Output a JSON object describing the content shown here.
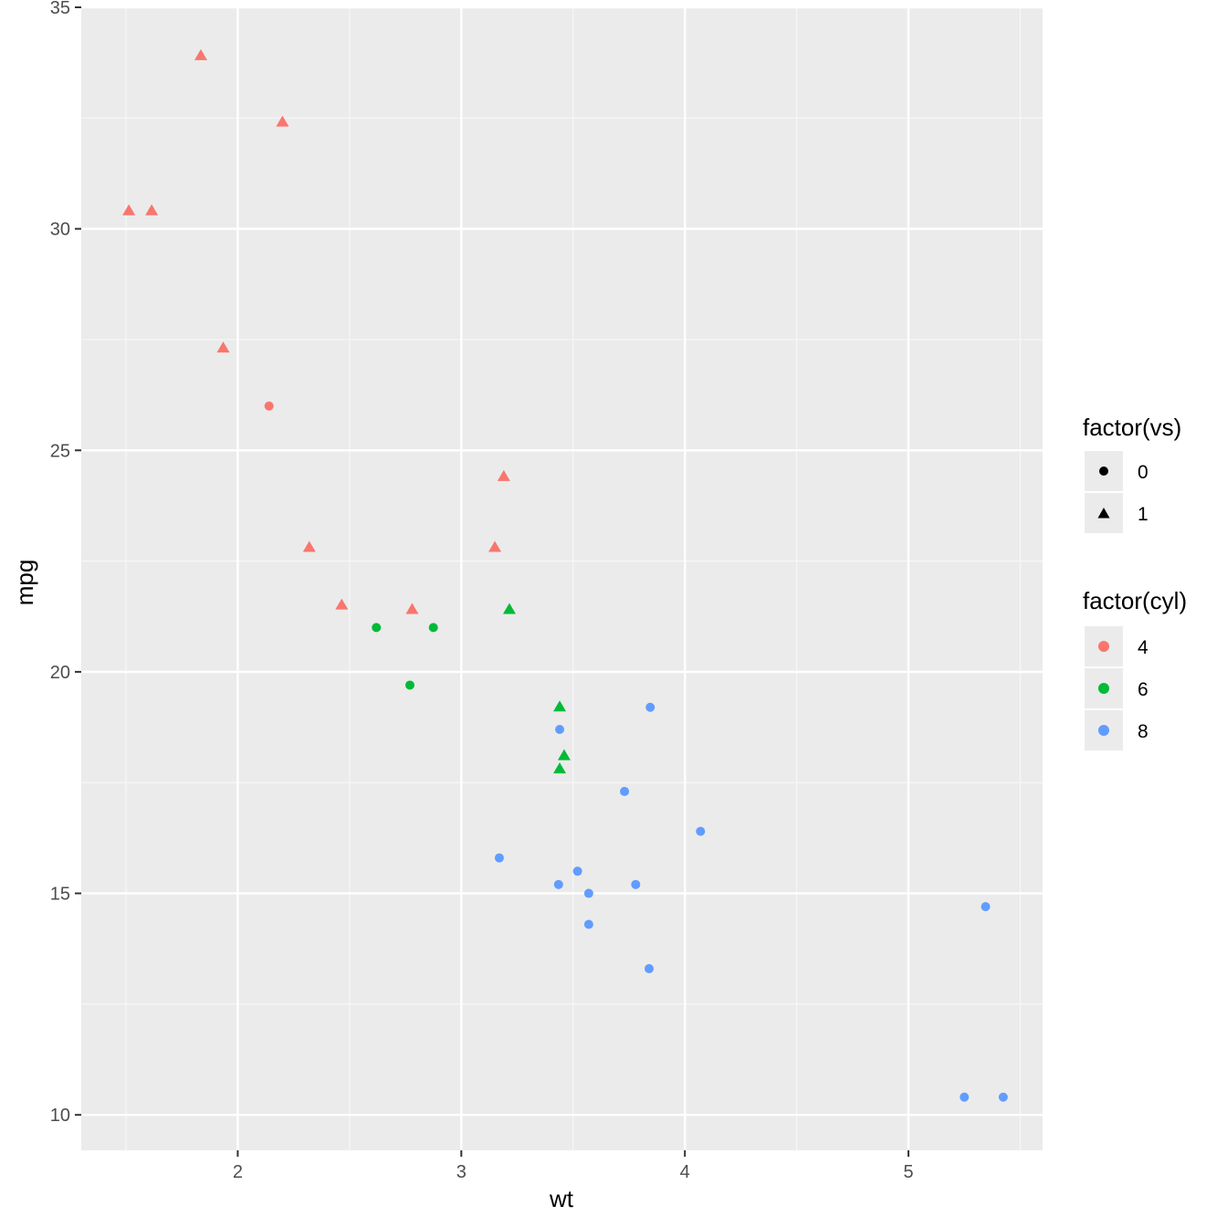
{
  "chart_data": {
    "type": "scatter",
    "title": "",
    "xlabel": "wt",
    "ylabel": "mpg",
    "xlim": [
      1.3,
      5.6
    ],
    "ylim": [
      9.2,
      35.0
    ],
    "x_ticks": [
      2,
      3,
      4,
      5
    ],
    "x_tick_labels": [
      "2",
      "3",
      "4",
      "5"
    ],
    "y_ticks": [
      10,
      15,
      20,
      25,
      30,
      35
    ],
    "y_tick_labels": [
      "10",
      "15",
      "20",
      "25",
      "30",
      "35"
    ],
    "grid": true,
    "colors": {
      "4": "#F8766D",
      "6": "#00BA38",
      "8": "#619CFF"
    },
    "legends": {
      "shape": {
        "title": "factor(vs)",
        "entries": [
          {
            "label": "0",
            "shape": "circle"
          },
          {
            "label": "1",
            "shape": "triangle"
          }
        ]
      },
      "color": {
        "title": "factor(cyl)",
        "entries": [
          {
            "label": "4",
            "color": "#F8766D"
          },
          {
            "label": "6",
            "color": "#00BA38"
          },
          {
            "label": "8",
            "color": "#619CFF"
          }
        ]
      }
    },
    "points": [
      {
        "wt": 1.835,
        "mpg": 33.9,
        "cyl": "4",
        "vs": "1"
      },
      {
        "wt": 2.2,
        "mpg": 32.4,
        "cyl": "4",
        "vs": "1"
      },
      {
        "wt": 1.513,
        "mpg": 30.4,
        "cyl": "4",
        "vs": "1"
      },
      {
        "wt": 1.615,
        "mpg": 30.4,
        "cyl": "4",
        "vs": "1"
      },
      {
        "wt": 1.935,
        "mpg": 27.3,
        "cyl": "4",
        "vs": "1"
      },
      {
        "wt": 2.14,
        "mpg": 26.0,
        "cyl": "4",
        "vs": "0"
      },
      {
        "wt": 3.19,
        "mpg": 24.4,
        "cyl": "4",
        "vs": "1"
      },
      {
        "wt": 2.32,
        "mpg": 22.8,
        "cyl": "4",
        "vs": "1"
      },
      {
        "wt": 3.15,
        "mpg": 22.8,
        "cyl": "4",
        "vs": "1"
      },
      {
        "wt": 2.465,
        "mpg": 21.5,
        "cyl": "4",
        "vs": "1"
      },
      {
        "wt": 2.78,
        "mpg": 21.4,
        "cyl": "4",
        "vs": "1"
      },
      {
        "wt": 2.62,
        "mpg": 21.0,
        "cyl": "6",
        "vs": "0"
      },
      {
        "wt": 2.875,
        "mpg": 21.0,
        "cyl": "6",
        "vs": "0"
      },
      {
        "wt": 2.77,
        "mpg": 19.7,
        "cyl": "6",
        "vs": "0"
      },
      {
        "wt": 3.215,
        "mpg": 21.4,
        "cyl": "6",
        "vs": "1"
      },
      {
        "wt": 3.44,
        "mpg": 19.2,
        "cyl": "6",
        "vs": "1"
      },
      {
        "wt": 3.46,
        "mpg": 18.1,
        "cyl": "6",
        "vs": "1"
      },
      {
        "wt": 3.44,
        "mpg": 17.8,
        "cyl": "6",
        "vs": "1"
      },
      {
        "wt": 3.845,
        "mpg": 19.2,
        "cyl": "8",
        "vs": "0"
      },
      {
        "wt": 3.44,
        "mpg": 18.7,
        "cyl": "8",
        "vs": "0"
      },
      {
        "wt": 3.73,
        "mpg": 17.3,
        "cyl": "8",
        "vs": "0"
      },
      {
        "wt": 4.07,
        "mpg": 16.4,
        "cyl": "8",
        "vs": "0"
      },
      {
        "wt": 3.17,
        "mpg": 15.8,
        "cyl": "8",
        "vs": "0"
      },
      {
        "wt": 3.52,
        "mpg": 15.5,
        "cyl": "8",
        "vs": "0"
      },
      {
        "wt": 3.435,
        "mpg": 15.2,
        "cyl": "8",
        "vs": "0"
      },
      {
        "wt": 3.78,
        "mpg": 15.2,
        "cyl": "8",
        "vs": "0"
      },
      {
        "wt": 3.57,
        "mpg": 15.0,
        "cyl": "8",
        "vs": "0"
      },
      {
        "wt": 3.57,
        "mpg": 14.3,
        "cyl": "8",
        "vs": "0"
      },
      {
        "wt": 3.84,
        "mpg": 13.3,
        "cyl": "8",
        "vs": "0"
      },
      {
        "wt": 5.345,
        "mpg": 14.7,
        "cyl": "8",
        "vs": "0"
      },
      {
        "wt": 5.25,
        "mpg": 10.4,
        "cyl": "8",
        "vs": "0"
      },
      {
        "wt": 5.424,
        "mpg": 10.4,
        "cyl": "8",
        "vs": "0"
      }
    ]
  }
}
